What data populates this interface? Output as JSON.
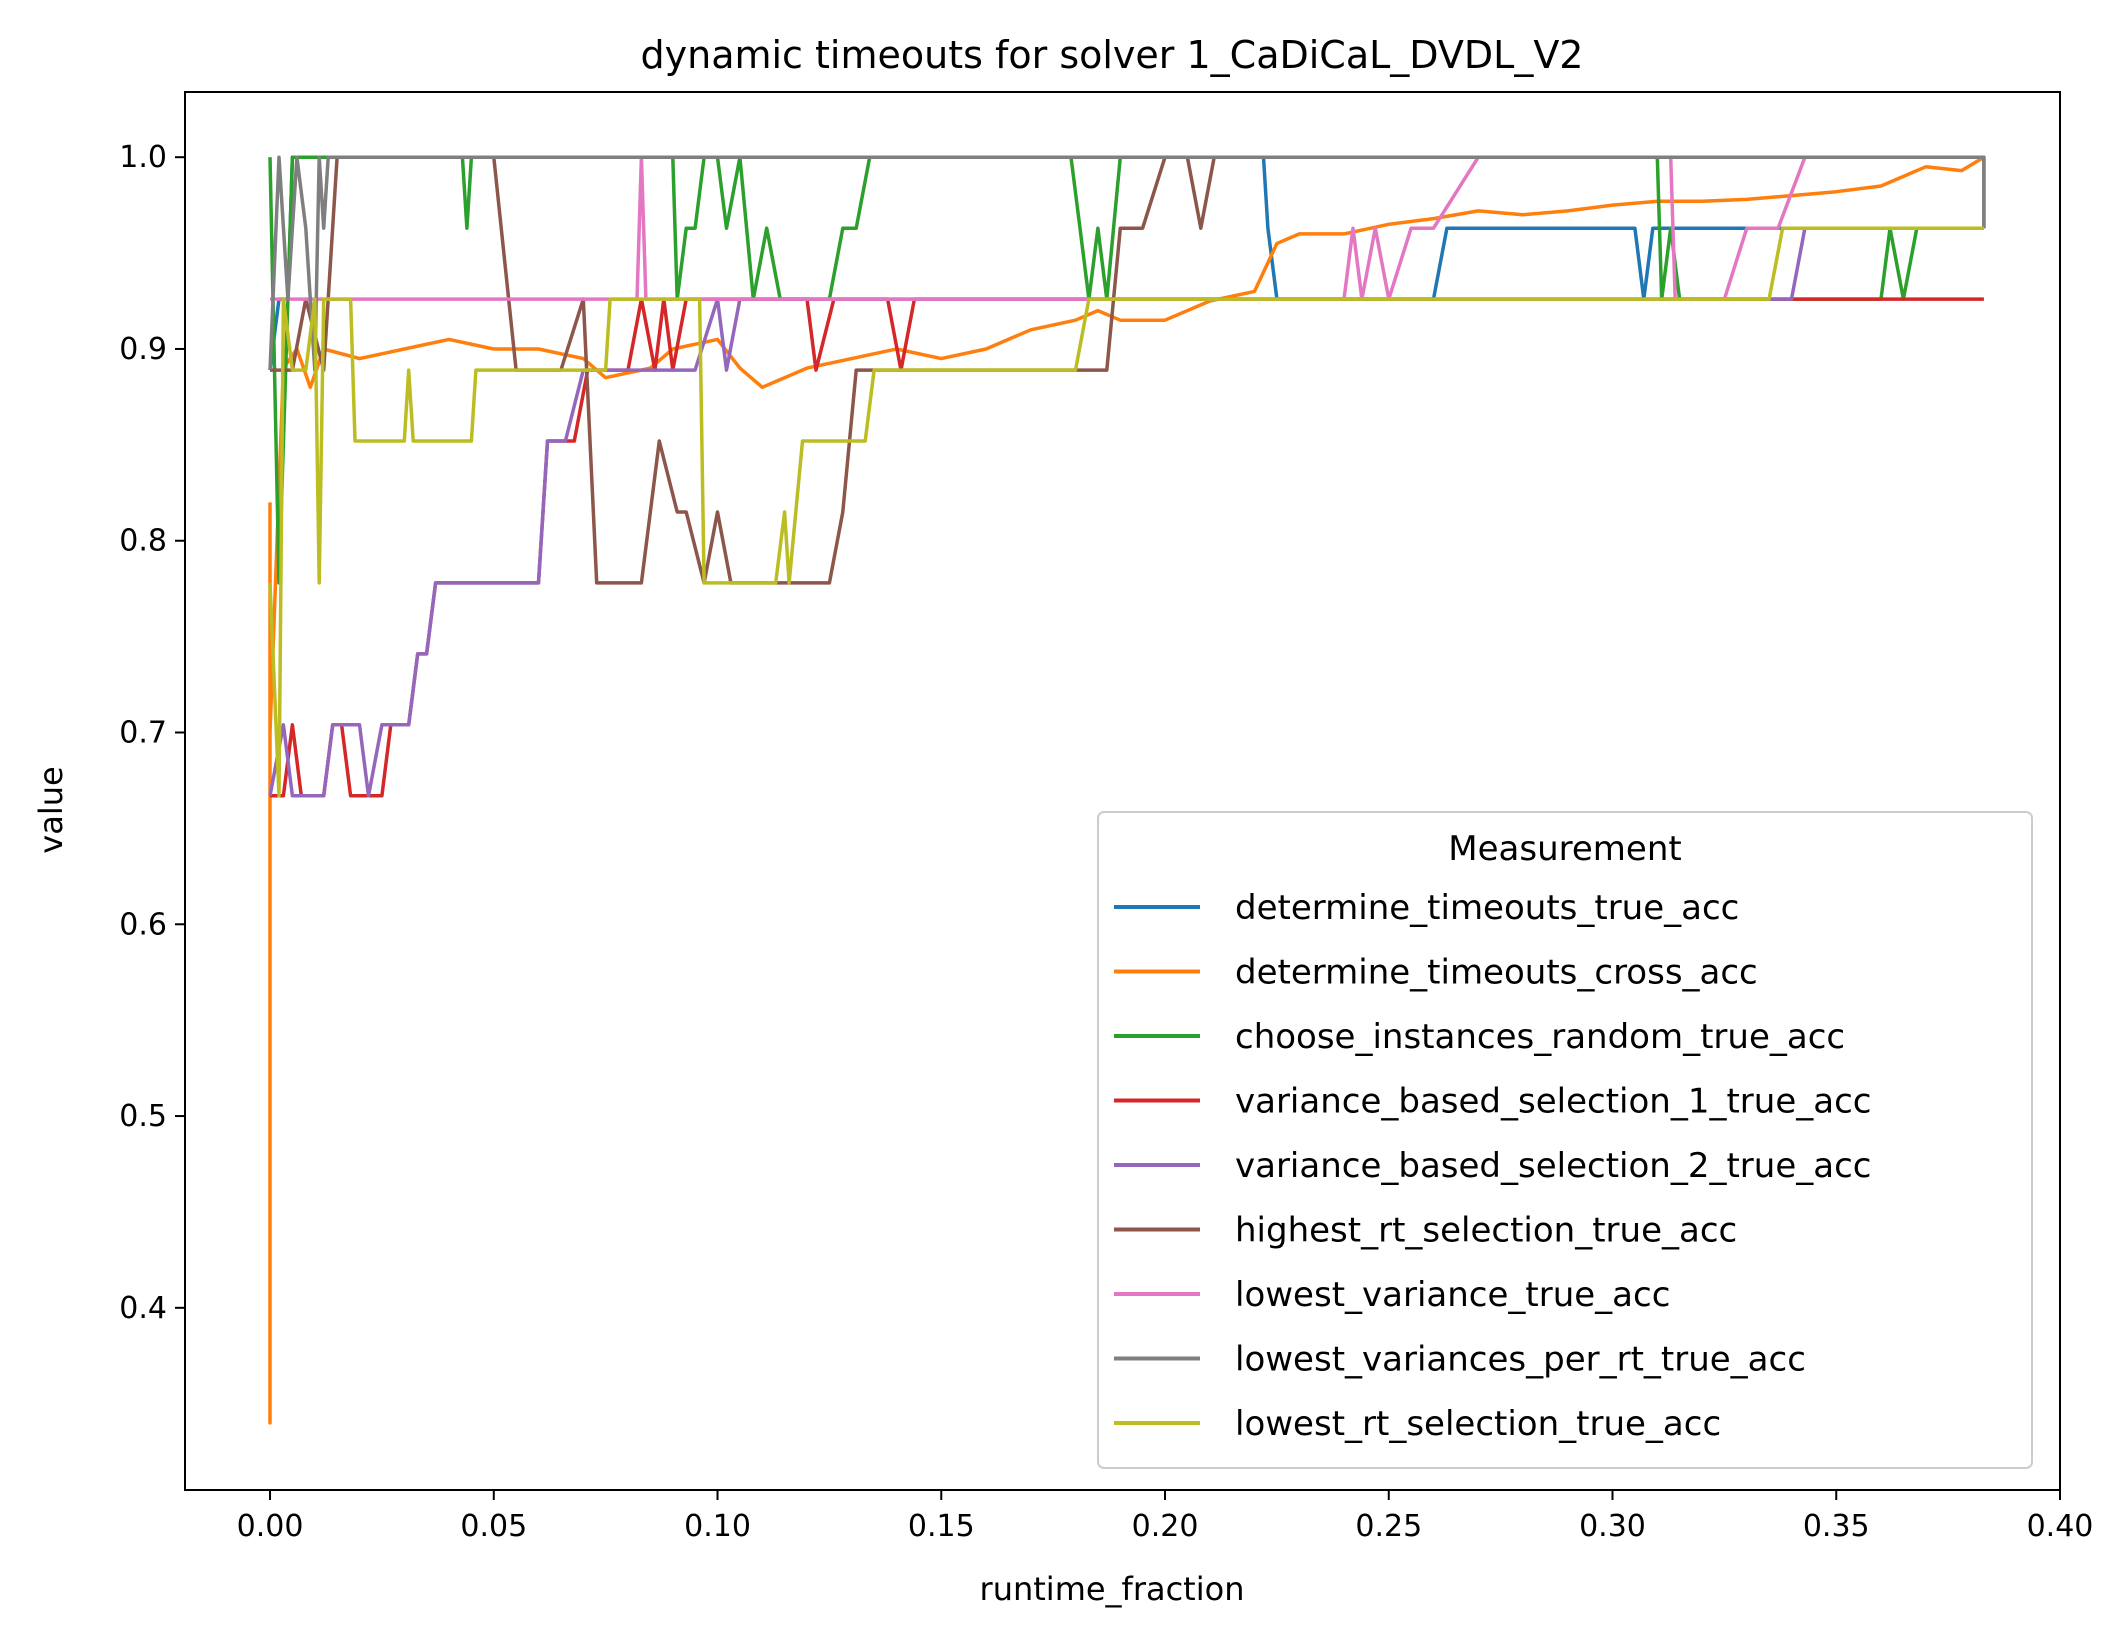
{
  "chart_data": {
    "type": "line",
    "title": "dynamic timeouts for solver 1_CaDiCaL_DVDL_V2",
    "xlabel": "runtime_fraction",
    "ylabel": "value",
    "xlim": [
      -0.019,
      0.4
    ],
    "ylim": [
      0.305,
      1.034
    ],
    "x_ticks": [
      "0.00",
      "0.05",
      "0.10",
      "0.15",
      "0.20",
      "0.25",
      "0.30",
      "0.35",
      "0.40"
    ],
    "y_ticks": [
      "0.4",
      "0.5",
      "0.6",
      "0.7",
      "0.8",
      "0.9",
      "1.0"
    ],
    "x_tick_values": [
      0,
      0.05,
      0.1,
      0.15,
      0.2,
      0.25,
      0.3,
      0.35,
      0.4
    ],
    "y_tick_values": [
      0.4,
      0.5,
      0.6,
      0.7,
      0.8,
      0.9,
      1.0
    ],
    "legend_title": "Measurement",
    "legend_position": "lower right",
    "grid": false,
    "series": [
      {
        "name": "determine_timeouts_true_acc",
        "color": "#1f77b4",
        "points": [
          [
            0,
            0.889
          ],
          [
            0.002,
            0.926
          ],
          [
            0.004,
            0.926
          ],
          [
            0.005,
            1.0
          ],
          [
            0.008,
            1.0
          ],
          [
            0.012,
            1.0
          ],
          [
            0.222,
            1.0
          ],
          [
            0.223,
            0.963
          ],
          [
            0.225,
            0.926
          ],
          [
            0.26,
            0.926
          ],
          [
            0.263,
            0.963
          ],
          [
            0.305,
            0.963
          ],
          [
            0.307,
            0.926
          ],
          [
            0.309,
            0.963
          ],
          [
            0.383,
            0.963
          ]
        ]
      },
      {
        "name": "determine_timeouts_cross_acc",
        "color": "#ff7f0e",
        "points": [
          [
            0,
            0.82
          ],
          [
            0,
            0.34
          ],
          [
            0,
            0.7
          ],
          [
            0.003,
            0.89
          ],
          [
            0.006,
            0.9
          ],
          [
            0.009,
            0.88
          ],
          [
            0.012,
            0.9
          ],
          [
            0.02,
            0.895
          ],
          [
            0.03,
            0.9
          ],
          [
            0.04,
            0.905
          ],
          [
            0.05,
            0.9
          ],
          [
            0.06,
            0.9
          ],
          [
            0.07,
            0.895
          ],
          [
            0.075,
            0.885
          ],
          [
            0.085,
            0.89
          ],
          [
            0.09,
            0.9
          ],
          [
            0.1,
            0.905
          ],
          [
            0.105,
            0.89
          ],
          [
            0.11,
            0.88
          ],
          [
            0.12,
            0.89
          ],
          [
            0.13,
            0.895
          ],
          [
            0.14,
            0.9
          ],
          [
            0.15,
            0.895
          ],
          [
            0.16,
            0.9
          ],
          [
            0.17,
            0.91
          ],
          [
            0.18,
            0.915
          ],
          [
            0.185,
            0.92
          ],
          [
            0.19,
            0.915
          ],
          [
            0.2,
            0.915
          ],
          [
            0.21,
            0.925
          ],
          [
            0.22,
            0.93
          ],
          [
            0.225,
            0.955
          ],
          [
            0.23,
            0.96
          ],
          [
            0.24,
            0.96
          ],
          [
            0.25,
            0.965
          ],
          [
            0.26,
            0.968
          ],
          [
            0.27,
            0.972
          ],
          [
            0.28,
            0.97
          ],
          [
            0.29,
            0.972
          ],
          [
            0.3,
            0.975
          ],
          [
            0.31,
            0.977
          ],
          [
            0.32,
            0.977
          ],
          [
            0.33,
            0.978
          ],
          [
            0.34,
            0.98
          ],
          [
            0.35,
            0.982
          ],
          [
            0.36,
            0.985
          ],
          [
            0.37,
            0.995
          ],
          [
            0.378,
            0.993
          ],
          [
            0.383,
            1.0
          ]
        ]
      },
      {
        "name": "choose_instances_random_true_acc",
        "color": "#2ca02c",
        "points": [
          [
            0,
            1.0
          ],
          [
            0.002,
            0.778
          ],
          [
            0.004,
            0.926
          ],
          [
            0.005,
            1.0
          ],
          [
            0.012,
            1.0
          ],
          [
            0.043,
            1.0
          ],
          [
            0.044,
            0.963
          ],
          [
            0.045,
            1.0
          ],
          [
            0.09,
            1.0
          ],
          [
            0.091,
            0.926
          ],
          [
            0.093,
            0.963
          ],
          [
            0.095,
            0.963
          ],
          [
            0.097,
            1.0
          ],
          [
            0.1,
            1.0
          ],
          [
            0.102,
            0.963
          ],
          [
            0.105,
            1.0
          ],
          [
            0.108,
            0.926
          ],
          [
            0.111,
            0.963
          ],
          [
            0.114,
            0.926
          ],
          [
            0.125,
            0.926
          ],
          [
            0.128,
            0.963
          ],
          [
            0.131,
            0.963
          ],
          [
            0.134,
            1.0
          ],
          [
            0.179,
            1.0
          ],
          [
            0.181,
            0.963
          ],
          [
            0.183,
            0.926
          ],
          [
            0.185,
            0.963
          ],
          [
            0.187,
            0.926
          ],
          [
            0.19,
            1.0
          ],
          [
            0.31,
            1.0
          ],
          [
            0.311,
            0.926
          ],
          [
            0.313,
            0.963
          ],
          [
            0.315,
            0.926
          ],
          [
            0.36,
            0.926
          ],
          [
            0.362,
            0.963
          ],
          [
            0.365,
            0.926
          ],
          [
            0.368,
            0.963
          ],
          [
            0.383,
            0.963
          ]
        ]
      },
      {
        "name": "variance_based_selection_1_true_acc",
        "color": "#d62728",
        "points": [
          [
            0,
            0.667
          ],
          [
            0.003,
            0.667
          ],
          [
            0.005,
            0.704
          ],
          [
            0.007,
            0.667
          ],
          [
            0.012,
            0.667
          ],
          [
            0.014,
            0.704
          ],
          [
            0.016,
            0.704
          ],
          [
            0.018,
            0.667
          ],
          [
            0.025,
            0.667
          ],
          [
            0.027,
            0.704
          ],
          [
            0.031,
            0.704
          ],
          [
            0.033,
            0.741
          ],
          [
            0.035,
            0.741
          ],
          [
            0.037,
            0.778
          ],
          [
            0.06,
            0.778
          ],
          [
            0.062,
            0.852
          ],
          [
            0.068,
            0.852
          ],
          [
            0.071,
            0.889
          ],
          [
            0.08,
            0.889
          ],
          [
            0.083,
            0.926
          ],
          [
            0.086,
            0.889
          ],
          [
            0.088,
            0.926
          ],
          [
            0.09,
            0.889
          ],
          [
            0.093,
            0.926
          ],
          [
            0.12,
            0.926
          ],
          [
            0.122,
            0.889
          ],
          [
            0.126,
            0.926
          ],
          [
            0.138,
            0.926
          ],
          [
            0.141,
            0.889
          ],
          [
            0.144,
            0.926
          ],
          [
            0.383,
            0.926
          ]
        ]
      },
      {
        "name": "variance_based_selection_2_true_acc",
        "color": "#9467bd",
        "points": [
          [
            0,
            0.667
          ],
          [
            0.003,
            0.704
          ],
          [
            0.005,
            0.667
          ],
          [
            0.012,
            0.667
          ],
          [
            0.014,
            0.704
          ],
          [
            0.02,
            0.704
          ],
          [
            0.022,
            0.667
          ],
          [
            0.025,
            0.704
          ],
          [
            0.031,
            0.704
          ],
          [
            0.033,
            0.741
          ],
          [
            0.035,
            0.741
          ],
          [
            0.037,
            0.778
          ],
          [
            0.06,
            0.778
          ],
          [
            0.062,
            0.852
          ],
          [
            0.066,
            0.852
          ],
          [
            0.07,
            0.889
          ],
          [
            0.095,
            0.889
          ],
          [
            0.1,
            0.926
          ],
          [
            0.102,
            0.889
          ],
          [
            0.105,
            0.926
          ],
          [
            0.34,
            0.926
          ],
          [
            0.343,
            0.963
          ],
          [
            0.383,
            0.963
          ]
        ]
      },
      {
        "name": "highest_rt_selection_true_acc",
        "color": "#8c564b",
        "points": [
          [
            0,
            0.889
          ],
          [
            0.005,
            0.889
          ],
          [
            0.008,
            0.926
          ],
          [
            0.012,
            0.889
          ],
          [
            0.015,
            1.0
          ],
          [
            0.05,
            1.0
          ],
          [
            0.055,
            0.889
          ],
          [
            0.065,
            0.889
          ],
          [
            0.07,
            0.926
          ],
          [
            0.073,
            0.778
          ],
          [
            0.083,
            0.778
          ],
          [
            0.087,
            0.852
          ],
          [
            0.091,
            0.815
          ],
          [
            0.093,
            0.815
          ],
          [
            0.097,
            0.778
          ],
          [
            0.1,
            0.815
          ],
          [
            0.103,
            0.778
          ],
          [
            0.125,
            0.778
          ],
          [
            0.128,
            0.815
          ],
          [
            0.131,
            0.889
          ],
          [
            0.18,
            0.889
          ],
          [
            0.187,
            0.889
          ],
          [
            0.19,
            0.963
          ],
          [
            0.195,
            0.963
          ],
          [
            0.2,
            1.0
          ],
          [
            0.205,
            1.0
          ],
          [
            0.208,
            0.963
          ],
          [
            0.211,
            1.0
          ],
          [
            0.383,
            1.0
          ],
          [
            0.383,
            0.963
          ]
        ]
      },
      {
        "name": "lowest_variance_true_acc",
        "color": "#e377c2",
        "points": [
          [
            0,
            0.926
          ],
          [
            0.082,
            0.926
          ],
          [
            0.083,
            1.0
          ],
          [
            0.084,
            0.926
          ],
          [
            0.24,
            0.926
          ],
          [
            0.242,
            0.963
          ],
          [
            0.244,
            0.926
          ],
          [
            0.247,
            0.963
          ],
          [
            0.25,
            0.926
          ],
          [
            0.255,
            0.963
          ],
          [
            0.26,
            0.963
          ],
          [
            0.27,
            1.0
          ],
          [
            0.313,
            1.0
          ],
          [
            0.314,
            0.926
          ],
          [
            0.325,
            0.926
          ],
          [
            0.33,
            0.963
          ],
          [
            0.337,
            0.963
          ],
          [
            0.343,
            1.0
          ],
          [
            0.383,
            1.0
          ]
        ]
      },
      {
        "name": "lowest_variances_per_rt_true_acc",
        "color": "#7f7f7f",
        "points": [
          [
            0,
            0.889
          ],
          [
            0.002,
            1.0
          ],
          [
            0.004,
            0.926
          ],
          [
            0.006,
            1.0
          ],
          [
            0.008,
            0.963
          ],
          [
            0.01,
            0.889
          ],
          [
            0.011,
            1.0
          ],
          [
            0.012,
            0.963
          ],
          [
            0.013,
            1.0
          ],
          [
            0.383,
            1.0
          ],
          [
            0.383,
            0.963
          ]
        ]
      },
      {
        "name": "lowest_rt_selection_true_acc",
        "color": "#bcbd22",
        "points": [
          [
            0,
            0.778
          ],
          [
            0.002,
            0.667
          ],
          [
            0.003,
            0.926
          ],
          [
            0.005,
            0.889
          ],
          [
            0.008,
            0.889
          ],
          [
            0.01,
            0.926
          ],
          [
            0.011,
            0.778
          ],
          [
            0.012,
            0.926
          ],
          [
            0.018,
            0.926
          ],
          [
            0.019,
            0.852
          ],
          [
            0.03,
            0.852
          ],
          [
            0.031,
            0.889
          ],
          [
            0.032,
            0.852
          ],
          [
            0.045,
            0.852
          ],
          [
            0.046,
            0.889
          ],
          [
            0.075,
            0.889
          ],
          [
            0.076,
            0.926
          ],
          [
            0.096,
            0.926
          ],
          [
            0.097,
            0.778
          ],
          [
            0.113,
            0.778
          ],
          [
            0.115,
            0.815
          ],
          [
            0.116,
            0.778
          ],
          [
            0.119,
            0.852
          ],
          [
            0.133,
            0.852
          ],
          [
            0.135,
            0.889
          ],
          [
            0.18,
            0.889
          ],
          [
            0.183,
            0.926
          ],
          [
            0.335,
            0.926
          ],
          [
            0.338,
            0.963
          ],
          [
            0.383,
            0.963
          ]
        ]
      }
    ]
  }
}
